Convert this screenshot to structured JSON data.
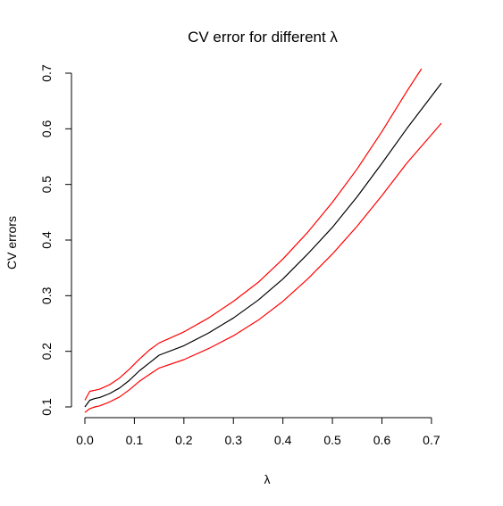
{
  "chart_data": {
    "type": "line",
    "title": "CV error for different λ",
    "xlabel": "λ",
    "ylabel": "CV errors",
    "xlim": [
      0.0,
      0.72
    ],
    "ylim": [
      0.1,
      0.7
    ],
    "xticks": [
      0.0,
      0.1,
      0.2,
      0.3,
      0.4,
      0.5,
      0.6,
      0.7
    ],
    "xtick_labels": [
      "0.0",
      "0.1",
      "0.2",
      "0.3",
      "0.4",
      "0.5",
      "0.6",
      "0.7"
    ],
    "yticks": [
      0.1,
      0.2,
      0.3,
      0.4,
      0.5,
      0.6,
      0.7
    ],
    "ytick_labels": [
      "0.1",
      "0.2",
      "0.3",
      "0.4",
      "0.5",
      "0.6",
      "0.7"
    ],
    "grid": false,
    "series": [
      {
        "color": "#000000",
        "x": [
          0.0,
          0.01,
          0.02,
          0.03,
          0.05,
          0.07,
          0.09,
          0.11,
          0.13,
          0.15,
          0.2,
          0.25,
          0.3,
          0.35,
          0.4,
          0.45,
          0.5,
          0.55,
          0.6,
          0.65,
          0.72
        ],
        "y": [
          0.1,
          0.112,
          0.115,
          0.117,
          0.124,
          0.134,
          0.148,
          0.165,
          0.179,
          0.193,
          0.21,
          0.233,
          0.26,
          0.292,
          0.33,
          0.375,
          0.423,
          0.478,
          0.538,
          0.6,
          0.682
        ]
      },
      {
        "color": "#ff0000",
        "x": [
          0.0,
          0.01,
          0.02,
          0.03,
          0.05,
          0.07,
          0.09,
          0.11,
          0.13,
          0.15,
          0.2,
          0.25,
          0.3,
          0.35,
          0.4,
          0.45,
          0.5,
          0.55,
          0.6,
          0.65,
          0.68
        ],
        "y": [
          0.112,
          0.128,
          0.13,
          0.132,
          0.14,
          0.152,
          0.168,
          0.186,
          0.202,
          0.215,
          0.235,
          0.26,
          0.29,
          0.324,
          0.366,
          0.414,
          0.468,
          0.528,
          0.595,
          0.667,
          0.708
        ]
      },
      {
        "color": "#ff0000",
        "x": [
          0.0,
          0.01,
          0.02,
          0.03,
          0.05,
          0.07,
          0.09,
          0.11,
          0.13,
          0.15,
          0.2,
          0.25,
          0.3,
          0.35,
          0.4,
          0.45,
          0.5,
          0.55,
          0.6,
          0.65,
          0.72
        ],
        "y": [
          0.09,
          0.097,
          0.1,
          0.102,
          0.109,
          0.118,
          0.131,
          0.146,
          0.158,
          0.17,
          0.185,
          0.205,
          0.228,
          0.256,
          0.29,
          0.33,
          0.375,
          0.425,
          0.48,
          0.538,
          0.61
        ]
      }
    ]
  }
}
